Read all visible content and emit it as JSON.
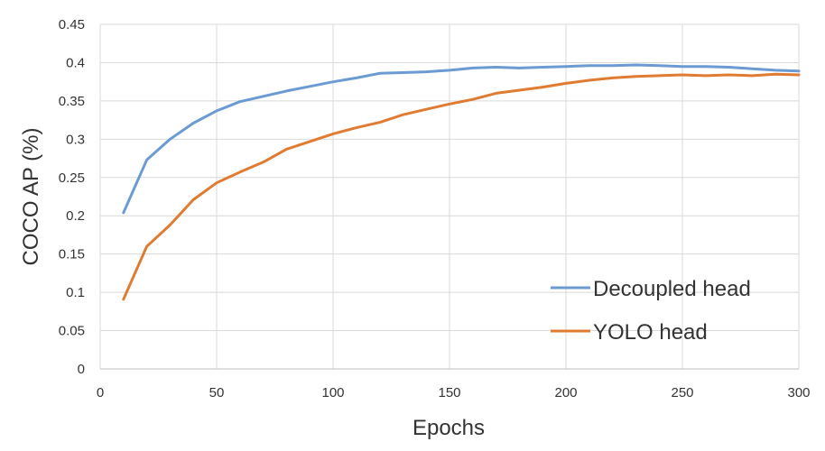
{
  "chart_data": {
    "type": "line",
    "title": "",
    "xlabel": "Epochs",
    "ylabel": "COCO AP (%)",
    "xlim": [
      0,
      300
    ],
    "ylim": [
      0,
      0.45
    ],
    "x_ticks": [
      "0",
      "50",
      "100",
      "150",
      "200",
      "250",
      "300"
    ],
    "y_ticks": [
      "0",
      "0.05",
      "0.1",
      "0.15",
      "0.2",
      "0.25",
      "0.3",
      "0.35",
      "0.4",
      "0.45"
    ],
    "grid": true,
    "legend_position": "bottom-right",
    "x": [
      10,
      20,
      30,
      40,
      50,
      60,
      70,
      80,
      90,
      100,
      110,
      120,
      130,
      140,
      150,
      160,
      170,
      180,
      190,
      200,
      210,
      220,
      230,
      240,
      250,
      260,
      270,
      280,
      290,
      300
    ],
    "series": [
      {
        "name": "Decoupled head",
        "color": "#6b9bd2",
        "values": [
          0.204,
          0.273,
          0.3,
          0.321,
          0.337,
          0.349,
          0.356,
          0.363,
          0.369,
          0.375,
          0.38,
          0.386,
          0.387,
          0.388,
          0.39,
          0.393,
          0.394,
          0.393,
          0.394,
          0.395,
          0.396,
          0.396,
          0.397,
          0.396,
          0.395,
          0.395,
          0.394,
          0.392,
          0.39,
          0.389
        ]
      },
      {
        "name": "YOLO head",
        "color": "#e07b32",
        "values": [
          0.091,
          0.16,
          0.188,
          0.221,
          0.243,
          0.257,
          0.27,
          0.287,
          0.297,
          0.307,
          0.315,
          0.322,
          0.332,
          0.339,
          0.346,
          0.352,
          0.36,
          0.364,
          0.368,
          0.373,
          0.377,
          0.38,
          0.382,
          0.383,
          0.384,
          0.383,
          0.384,
          0.383,
          0.385,
          0.384
        ]
      }
    ]
  }
}
